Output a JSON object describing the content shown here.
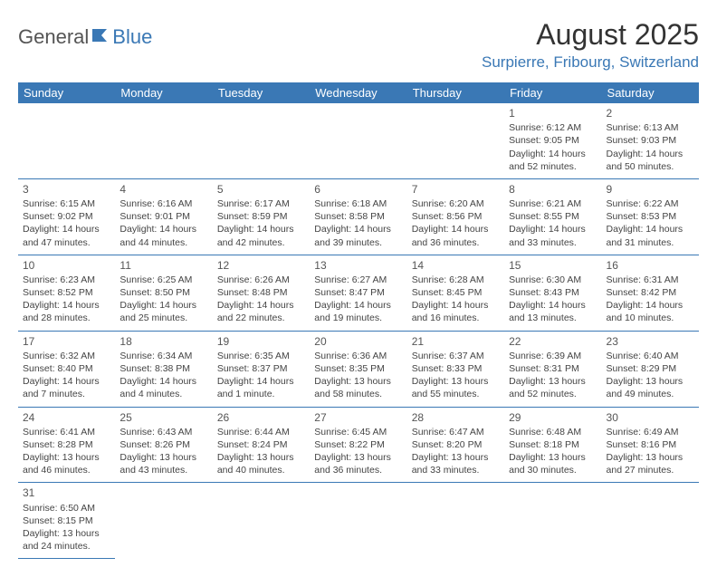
{
  "logo": {
    "part1": "General",
    "part2": "Blue",
    "color1": "#555555",
    "color2": "#3a78b5"
  },
  "title": "August 2025",
  "subtitle": "Surpierre, Fribourg, Switzerland",
  "header_bg": "#3a78b5",
  "border_color": "#3a78b5",
  "day_names": [
    "Sunday",
    "Monday",
    "Tuesday",
    "Wednesday",
    "Thursday",
    "Friday",
    "Saturday"
  ],
  "weeks": [
    [
      null,
      null,
      null,
      null,
      null,
      {
        "n": "1",
        "sr": "Sunrise: 6:12 AM",
        "ss": "Sunset: 9:05 PM",
        "d1": "Daylight: 14 hours",
        "d2": "and 52 minutes."
      },
      {
        "n": "2",
        "sr": "Sunrise: 6:13 AM",
        "ss": "Sunset: 9:03 PM",
        "d1": "Daylight: 14 hours",
        "d2": "and 50 minutes."
      }
    ],
    [
      {
        "n": "3",
        "sr": "Sunrise: 6:15 AM",
        "ss": "Sunset: 9:02 PM",
        "d1": "Daylight: 14 hours",
        "d2": "and 47 minutes."
      },
      {
        "n": "4",
        "sr": "Sunrise: 6:16 AM",
        "ss": "Sunset: 9:01 PM",
        "d1": "Daylight: 14 hours",
        "d2": "and 44 minutes."
      },
      {
        "n": "5",
        "sr": "Sunrise: 6:17 AM",
        "ss": "Sunset: 8:59 PM",
        "d1": "Daylight: 14 hours",
        "d2": "and 42 minutes."
      },
      {
        "n": "6",
        "sr": "Sunrise: 6:18 AM",
        "ss": "Sunset: 8:58 PM",
        "d1": "Daylight: 14 hours",
        "d2": "and 39 minutes."
      },
      {
        "n": "7",
        "sr": "Sunrise: 6:20 AM",
        "ss": "Sunset: 8:56 PM",
        "d1": "Daylight: 14 hours",
        "d2": "and 36 minutes."
      },
      {
        "n": "8",
        "sr": "Sunrise: 6:21 AM",
        "ss": "Sunset: 8:55 PM",
        "d1": "Daylight: 14 hours",
        "d2": "and 33 minutes."
      },
      {
        "n": "9",
        "sr": "Sunrise: 6:22 AM",
        "ss": "Sunset: 8:53 PM",
        "d1": "Daylight: 14 hours",
        "d2": "and 31 minutes."
      }
    ],
    [
      {
        "n": "10",
        "sr": "Sunrise: 6:23 AM",
        "ss": "Sunset: 8:52 PM",
        "d1": "Daylight: 14 hours",
        "d2": "and 28 minutes."
      },
      {
        "n": "11",
        "sr": "Sunrise: 6:25 AM",
        "ss": "Sunset: 8:50 PM",
        "d1": "Daylight: 14 hours",
        "d2": "and 25 minutes."
      },
      {
        "n": "12",
        "sr": "Sunrise: 6:26 AM",
        "ss": "Sunset: 8:48 PM",
        "d1": "Daylight: 14 hours",
        "d2": "and 22 minutes."
      },
      {
        "n": "13",
        "sr": "Sunrise: 6:27 AM",
        "ss": "Sunset: 8:47 PM",
        "d1": "Daylight: 14 hours",
        "d2": "and 19 minutes."
      },
      {
        "n": "14",
        "sr": "Sunrise: 6:28 AM",
        "ss": "Sunset: 8:45 PM",
        "d1": "Daylight: 14 hours",
        "d2": "and 16 minutes."
      },
      {
        "n": "15",
        "sr": "Sunrise: 6:30 AM",
        "ss": "Sunset: 8:43 PM",
        "d1": "Daylight: 14 hours",
        "d2": "and 13 minutes."
      },
      {
        "n": "16",
        "sr": "Sunrise: 6:31 AM",
        "ss": "Sunset: 8:42 PM",
        "d1": "Daylight: 14 hours",
        "d2": "and 10 minutes."
      }
    ],
    [
      {
        "n": "17",
        "sr": "Sunrise: 6:32 AM",
        "ss": "Sunset: 8:40 PM",
        "d1": "Daylight: 14 hours",
        "d2": "and 7 minutes."
      },
      {
        "n": "18",
        "sr": "Sunrise: 6:34 AM",
        "ss": "Sunset: 8:38 PM",
        "d1": "Daylight: 14 hours",
        "d2": "and 4 minutes."
      },
      {
        "n": "19",
        "sr": "Sunrise: 6:35 AM",
        "ss": "Sunset: 8:37 PM",
        "d1": "Daylight: 14 hours",
        "d2": "and 1 minute."
      },
      {
        "n": "20",
        "sr": "Sunrise: 6:36 AM",
        "ss": "Sunset: 8:35 PM",
        "d1": "Daylight: 13 hours",
        "d2": "and 58 minutes."
      },
      {
        "n": "21",
        "sr": "Sunrise: 6:37 AM",
        "ss": "Sunset: 8:33 PM",
        "d1": "Daylight: 13 hours",
        "d2": "and 55 minutes."
      },
      {
        "n": "22",
        "sr": "Sunrise: 6:39 AM",
        "ss": "Sunset: 8:31 PM",
        "d1": "Daylight: 13 hours",
        "d2": "and 52 minutes."
      },
      {
        "n": "23",
        "sr": "Sunrise: 6:40 AM",
        "ss": "Sunset: 8:29 PM",
        "d1": "Daylight: 13 hours",
        "d2": "and 49 minutes."
      }
    ],
    [
      {
        "n": "24",
        "sr": "Sunrise: 6:41 AM",
        "ss": "Sunset: 8:28 PM",
        "d1": "Daylight: 13 hours",
        "d2": "and 46 minutes."
      },
      {
        "n": "25",
        "sr": "Sunrise: 6:43 AM",
        "ss": "Sunset: 8:26 PM",
        "d1": "Daylight: 13 hours",
        "d2": "and 43 minutes."
      },
      {
        "n": "26",
        "sr": "Sunrise: 6:44 AM",
        "ss": "Sunset: 8:24 PM",
        "d1": "Daylight: 13 hours",
        "d2": "and 40 minutes."
      },
      {
        "n": "27",
        "sr": "Sunrise: 6:45 AM",
        "ss": "Sunset: 8:22 PM",
        "d1": "Daylight: 13 hours",
        "d2": "and 36 minutes."
      },
      {
        "n": "28",
        "sr": "Sunrise: 6:47 AM",
        "ss": "Sunset: 8:20 PM",
        "d1": "Daylight: 13 hours",
        "d2": "and 33 minutes."
      },
      {
        "n": "29",
        "sr": "Sunrise: 6:48 AM",
        "ss": "Sunset: 8:18 PM",
        "d1": "Daylight: 13 hours",
        "d2": "and 30 minutes."
      },
      {
        "n": "30",
        "sr": "Sunrise: 6:49 AM",
        "ss": "Sunset: 8:16 PM",
        "d1": "Daylight: 13 hours",
        "d2": "and 27 minutes."
      }
    ],
    [
      {
        "n": "31",
        "sr": "Sunrise: 6:50 AM",
        "ss": "Sunset: 8:15 PM",
        "d1": "Daylight: 13 hours",
        "d2": "and 24 minutes."
      },
      null,
      null,
      null,
      null,
      null,
      null
    ]
  ]
}
